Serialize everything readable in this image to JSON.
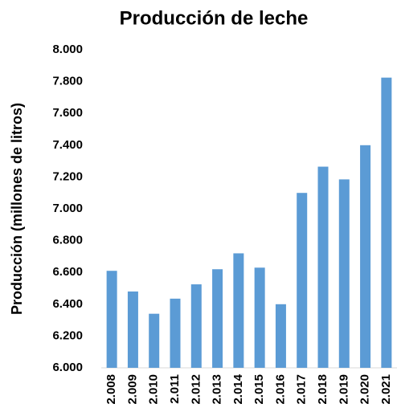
{
  "chart_data": {
    "type": "bar",
    "title": "Producción de leche",
    "y_label": "Producción (millones de litros)",
    "categories": [
      "2.008",
      "2.009",
      "2.010",
      "2.011",
      "2.012",
      "2.013",
      "2.014",
      "2.015",
      "2.016",
      "2.017",
      "2.018",
      "2.019",
      "2.020",
      "2.021"
    ],
    "values": [
      6610,
      6480,
      6340,
      6435,
      6525,
      6620,
      6720,
      6630,
      6400,
      7100,
      7265,
      7185,
      7400,
      7825
    ],
    "color": "#5b9bd5",
    "ylim": [
      6000,
      8000
    ],
    "yticks": [
      {
        "value": 6000,
        "label": "6.000"
      },
      {
        "value": 6200,
        "label": "6.200"
      },
      {
        "value": 6400,
        "label": "6.400"
      },
      {
        "value": 6600,
        "label": "6.600"
      },
      {
        "value": 6800,
        "label": "6.800"
      },
      {
        "value": 7000,
        "label": "7.000"
      },
      {
        "value": 7200,
        "label": "7.200"
      },
      {
        "value": 7400,
        "label": "7.400"
      },
      {
        "value": 7600,
        "label": "7.600"
      },
      {
        "value": 7800,
        "label": "7.800"
      },
      {
        "value": 8000,
        "label": "8.000"
      }
    ],
    "grid": false
  }
}
